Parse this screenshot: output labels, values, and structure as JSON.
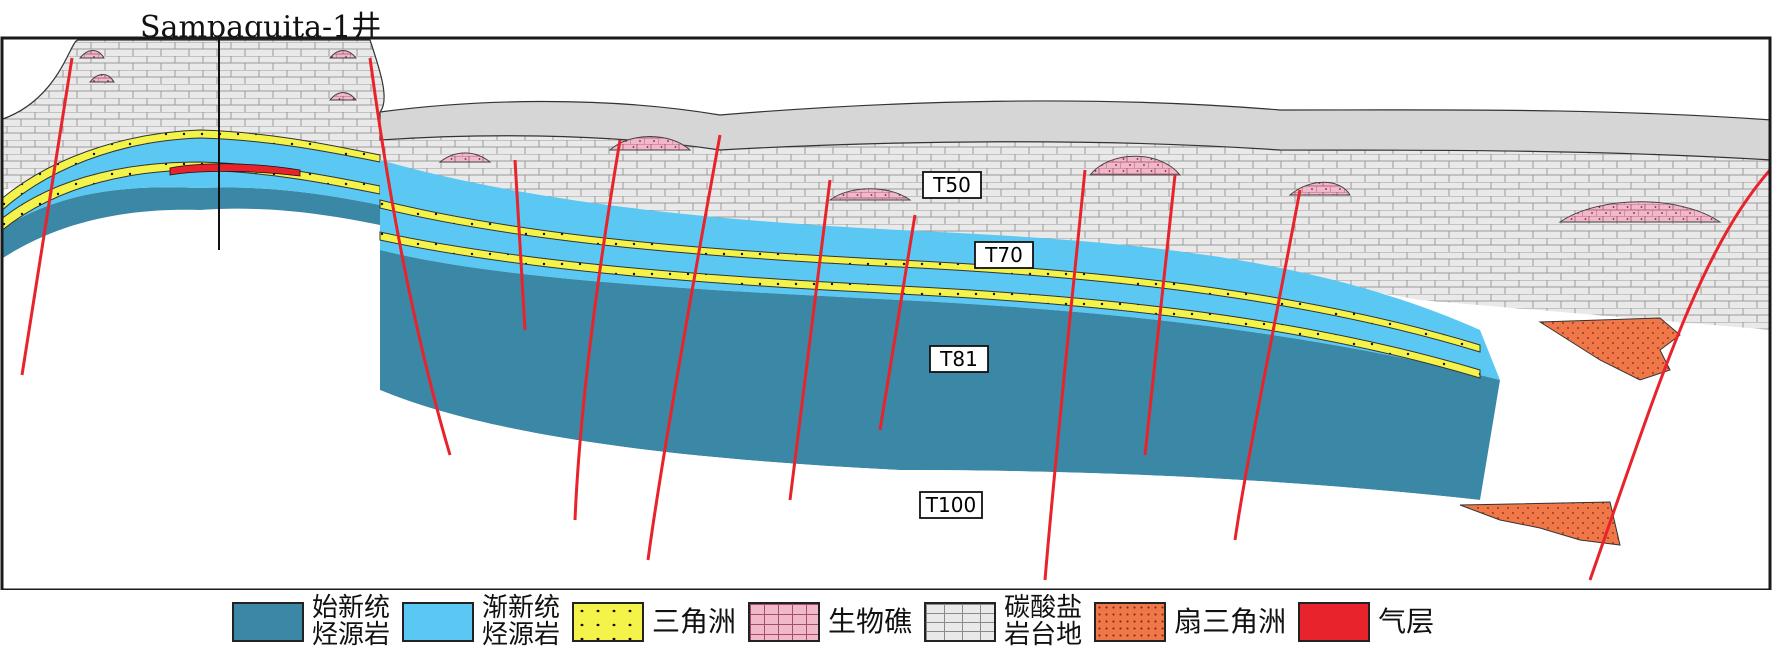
{
  "well": {
    "name": "Sampaguita-1井"
  },
  "horizons": [
    {
      "id": "T50",
      "label": "T50"
    },
    {
      "id": "T70",
      "label": "T70"
    },
    {
      "id": "T81",
      "label": "T81"
    },
    {
      "id": "T100",
      "label": "T100"
    }
  ],
  "legend": {
    "items": [
      {
        "key": "eocene-source",
        "line1": "始新统",
        "line2": "烃源岩",
        "color": "#3a87a6"
      },
      {
        "key": "oligocene-source",
        "line1": "渐新统",
        "line2": "烃源岩",
        "color": "#5ac8f2"
      },
      {
        "key": "delta",
        "line1": "三角洲",
        "line2": "",
        "color": "#f4f34a"
      },
      {
        "key": "reef",
        "line1": "生物礁",
        "line2": "",
        "color": "#f0b8c8"
      },
      {
        "key": "carbonate-platform",
        "line1": "碳酸盐",
        "line2": "岩台地",
        "color": "#e8e8e8"
      },
      {
        "key": "fan-delta",
        "line1": "扇三角洲",
        "line2": "",
        "color": "#f07848"
      },
      {
        "key": "gas-layer",
        "line1": "气层",
        "line2": "",
        "color": "#e8232b"
      }
    ]
  },
  "colors": {
    "eocene": "#3a87a6",
    "oligocene": "#5ac8f2",
    "delta": "#f4f34a",
    "reef": "#f0b8c8",
    "carbonate": "#e8e8e8",
    "carbonate_top": "#d6d6d6",
    "fan_delta": "#f07848",
    "gas": "#e8232b",
    "fault": "#e8232b",
    "frame": "#1a1a1a"
  }
}
